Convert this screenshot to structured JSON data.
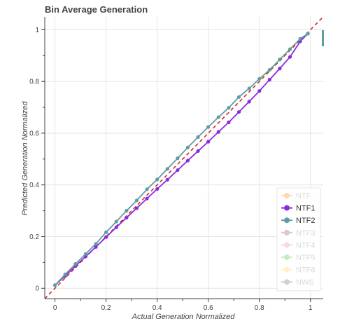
{
  "chart_data": {
    "type": "line",
    "title": "Bin Average Generation",
    "xlabel": "Actual Generation Normalized",
    "ylabel": "Predicted Generation Normalized",
    "xlim": [
      -0.04,
      1.05
    ],
    "ylim": [
      -0.04,
      1.05
    ],
    "x_ticks": [
      0,
      0.2,
      0.4,
      0.6,
      0.8,
      1
    ],
    "y_ticks": [
      0,
      0.2,
      0.4,
      0.6,
      0.8,
      1
    ],
    "x_tick_labels": [
      "0",
      "0.2",
      "0.4",
      "0.6",
      "0.8",
      "1"
    ],
    "y_tick_labels": [
      "0",
      "0.2",
      "0.4",
      "0.6",
      "0.8",
      "1"
    ],
    "grid": true,
    "legend_position": "bottom-right",
    "reference_line": {
      "x": [
        -0.04,
        1.05
      ],
      "y": [
        -0.04,
        1.05
      ],
      "color": "#d62728",
      "style": "dashed"
    },
    "series": [
      {
        "name": "NTF",
        "color": "#ffbb78",
        "visible": false,
        "x": [],
        "y": []
      },
      {
        "name": "NTF1",
        "color": "#8a2be2",
        "visible": true,
        "x": [
          0,
          0.04,
          0.08,
          0.12,
          0.16,
          0.2,
          0.24,
          0.28,
          0.32,
          0.36,
          0.4,
          0.44,
          0.48,
          0.52,
          0.56,
          0.6,
          0.64,
          0.68,
          0.72,
          0.76,
          0.8,
          0.84,
          0.88,
          0.92,
          0.96,
          0.99
        ],
        "y": [
          0.012,
          0.048,
          0.086,
          0.123,
          0.16,
          0.198,
          0.236,
          0.273,
          0.31,
          0.347,
          0.384,
          0.42,
          0.457,
          0.494,
          0.531,
          0.567,
          0.605,
          0.642,
          0.682,
          0.722,
          0.763,
          0.807,
          0.85,
          0.895,
          0.955,
          0.985
        ]
      },
      {
        "name": "NTF2",
        "color": "#5f9ea0",
        "visible": true,
        "x": [
          0,
          0.04,
          0.08,
          0.12,
          0.16,
          0.2,
          0.24,
          0.28,
          0.32,
          0.36,
          0.4,
          0.44,
          0.48,
          0.52,
          0.56,
          0.6,
          0.64,
          0.68,
          0.72,
          0.76,
          0.8,
          0.84,
          0.88,
          0.92,
          0.96,
          0.99
        ],
        "y": [
          0.012,
          0.054,
          0.094,
          0.133,
          0.172,
          0.217,
          0.258,
          0.3,
          0.34,
          0.383,
          0.421,
          0.462,
          0.503,
          0.545,
          0.585,
          0.624,
          0.662,
          0.698,
          0.74,
          0.773,
          0.81,
          0.845,
          0.885,
          0.925,
          0.965,
          0.985
        ]
      },
      {
        "name": "NTF3",
        "color": "#c49c94",
        "visible": false,
        "x": [],
        "y": []
      },
      {
        "name": "NTF4",
        "color": "#f7b6d2",
        "visible": false,
        "x": [],
        "y": []
      },
      {
        "name": "NTF5",
        "color": "#98df8a",
        "visible": false,
        "x": [],
        "y": []
      },
      {
        "name": "NTF6",
        "color": "#ffeb99",
        "visible": false,
        "x": [],
        "y": []
      },
      {
        "name": "NWS",
        "color": "#aaaaaa",
        "visible": false,
        "x": [],
        "y": []
      }
    ]
  }
}
